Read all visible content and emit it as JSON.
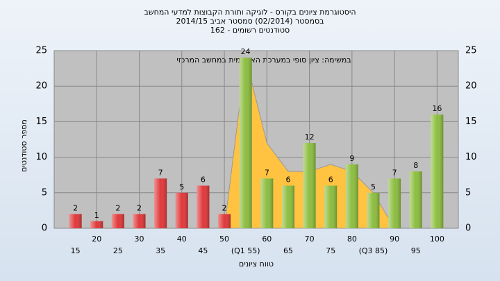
{
  "chart_data": {
    "type": "bar",
    "title": "היסטוגרמת ציונים בקורס - לוגיקה ותורת הקבוצות למדעי המחשב",
    "subtitle": "בסמסטר  (02/2014)  סמסטר אביב 2014/15",
    "subtitle2": "סטודנטים רשומים - 162",
    "annotation": "במשימה: ציון סופי במערכת האקדמית במחשב המרכזי",
    "y_label": "מספר סטודנטים",
    "x_label": "טווח ציונים",
    "categories": [
      "15",
      "20",
      "25",
      "30",
      "35",
      "40",
      "45",
      "50",
      "(Q1 55)",
      "60",
      "65",
      "70",
      "75",
      "80",
      "(Q3 85)",
      "90",
      "95",
      "100"
    ],
    "values": [
      2,
      1,
      2,
      2,
      7,
      5,
      6,
      2,
      24,
      7,
      6,
      12,
      6,
      9,
      5,
      7,
      8,
      16
    ],
    "colors": [
      "#e0383a",
      "#e0383a",
      "#e0383a",
      "#e0383a",
      "#e0383a",
      "#e0383a",
      "#e0383a",
      "#e0383a",
      "#8cbd3f",
      "#8cbd3f",
      "#8cbd3f",
      "#8cbd3f",
      "#8cbd3f",
      "#8cbd3f",
      "#8cbd3f",
      "#8cbd3f",
      "#8cbd3f",
      "#8cbd3f"
    ],
    "area": {
      "color": "#ffc341",
      "values": [
        null,
        null,
        null,
        null,
        null,
        null,
        null,
        0,
        24,
        12,
        8,
        8,
        9,
        8,
        5,
        0,
        null,
        null
      ]
    },
    "ylim": [
      0,
      25
    ],
    "yticks": [
      0,
      5,
      10,
      15,
      20,
      25
    ],
    "grid": true
  }
}
